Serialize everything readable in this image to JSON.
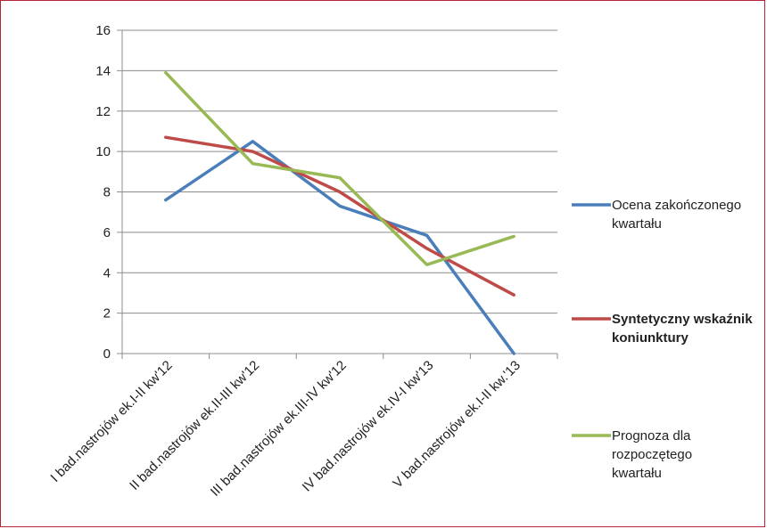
{
  "chart_data": {
    "type": "line",
    "title": "",
    "xlabel": "",
    "ylabel": "",
    "categories": [
      "I bad.nastrojów ek.I-II kw'12",
      "II bad.nastrojów ek.II-III kw'12",
      "III bad.nastrojów ek.III-IV kw'12",
      "IV bad.nastrojów ek.IV-I kw'13",
      "V bad.nastrojów ek.I-II kw.'13"
    ],
    "ylim": [
      0,
      16
    ],
    "yticks": [
      "0",
      "2",
      "4",
      "6",
      "8",
      "10",
      "12",
      "14",
      "16"
    ],
    "grid": true,
    "legend_position": "right",
    "series": [
      {
        "name": "Ocena zakończonego kwartału",
        "legend_lines": [
          "Ocena zakończonego",
          "kwartału"
        ],
        "bold": false,
        "color": "#4a7ebb",
        "values": [
          7.6,
          10.5,
          7.3,
          5.85,
          0.0
        ]
      },
      {
        "name": "Syntetyczny wskaźnik koniunktury",
        "legend_lines": [
          "Syntetyczny wskaźnik",
          "koniunktury"
        ],
        "bold": true,
        "color": "#be4b48",
        "values": [
          10.7,
          10.0,
          8.0,
          5.2,
          2.9
        ]
      },
      {
        "name": "Prognoza dla rozpoczętego kwartału",
        "legend_lines": [
          "Prognoza dla",
          "rozpoczętego",
          "kwartału"
        ],
        "bold": false,
        "color": "#98b954",
        "values": [
          13.9,
          9.4,
          8.7,
          4.4,
          5.8
        ]
      }
    ]
  }
}
